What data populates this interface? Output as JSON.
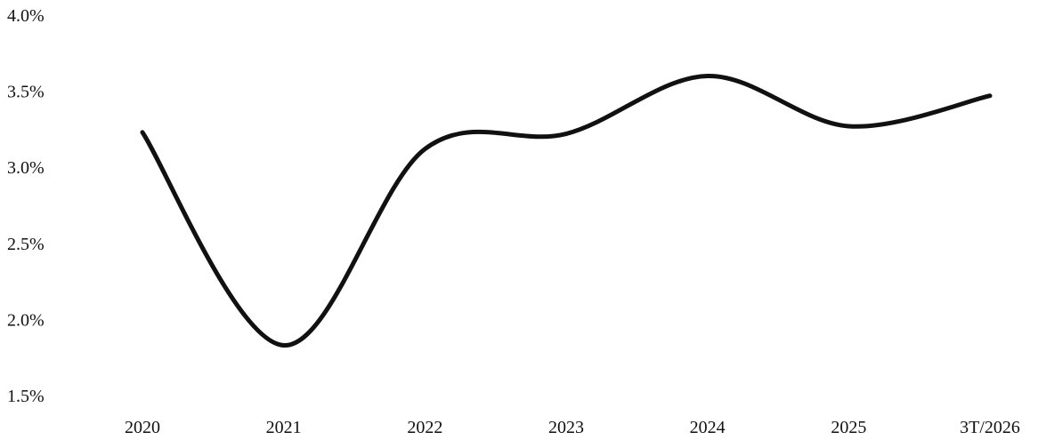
{
  "chart_data": {
    "type": "line",
    "title": "",
    "xlabel": "",
    "ylabel": "",
    "categories": [
      "2020",
      "2021",
      "2022",
      "2023",
      "2024",
      "2025",
      "3T/2026"
    ],
    "series": [
      {
        "values": [
          3.23,
          1.83,
          3.12,
          3.22,
          3.6,
          3.27,
          3.47
        ]
      }
    ],
    "ylim": [
      1.5,
      4.0
    ],
    "yticks": [
      "1.5%",
      "2.0%",
      "2.5%",
      "3.0%",
      "3.5%",
      "4.0%"
    ],
    "ytick_values": [
      1.5,
      2.0,
      2.5,
      3.0,
      3.5,
      4.0
    ],
    "grid": false,
    "line_color": "#111111",
    "smooth": true
  }
}
